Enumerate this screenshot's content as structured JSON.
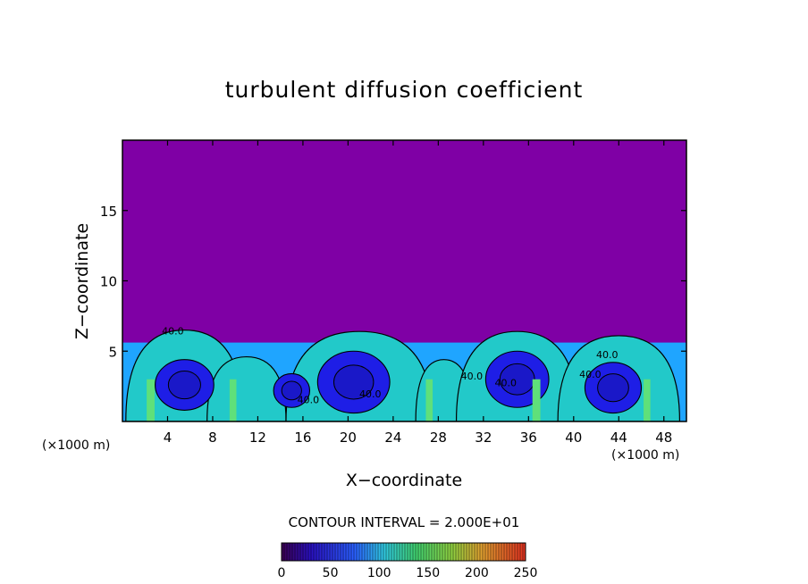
{
  "chart_data": {
    "type": "heatmap",
    "title": "turbulent diffusion coefficient",
    "xlabel": "X−coordinate",
    "ylabel": "Z−coordinate",
    "x_unit_left": "(×1000 m)",
    "x_unit_right": "(×1000 m)",
    "xlim": [
      0,
      50
    ],
    "ylim": [
      0,
      20
    ],
    "x_ticks": [
      4,
      8,
      12,
      16,
      20,
      24,
      28,
      32,
      36,
      40,
      44,
      48
    ],
    "y_ticks": [
      5,
      10,
      15
    ],
    "contour_interval_text": "CONTOUR INTERVAL = 2.000E+01",
    "colorbar": {
      "range": [
        0,
        250
      ],
      "ticks": [
        0,
        50,
        100,
        150,
        200,
        250
      ]
    },
    "contour_labels": [
      "40.0",
      "40.0",
      "40.0",
      "40.0",
      "40.0",
      "40.0",
      "40.0"
    ],
    "boundary_layer_top_approx": 6.5,
    "background_value": 0,
    "colors": {
      "background": "#7f00a5",
      "low": "#1e1ee6",
      "mid": "#1fa5ff",
      "high": "#22c9c9",
      "peak": "#5fe07a"
    }
  }
}
